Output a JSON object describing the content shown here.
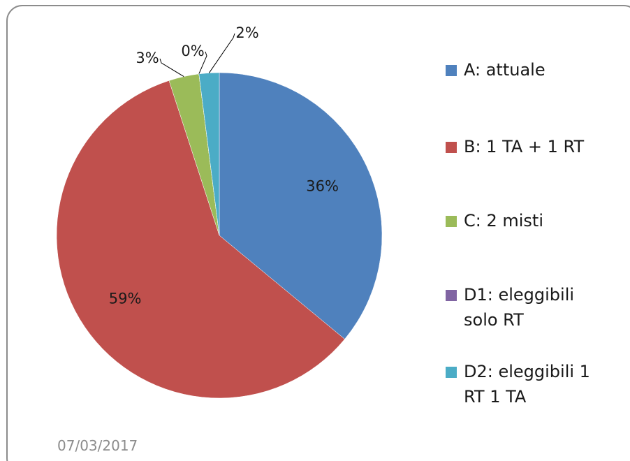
{
  "chart_data": {
    "type": "pie",
    "categories": [
      "A: attuale",
      "B: 1 TA + 1 RT",
      "C: 2 misti",
      "D1: eleggibili solo RT",
      "D2: eleggibili 1 RT 1 TA"
    ],
    "values": [
      36,
      59,
      3,
      0,
      2
    ],
    "value_labels": [
      "36%",
      "59%",
      "3%",
      "0%",
      "2%"
    ],
    "colors": [
      "#4f81bd",
      "#c0504d",
      "#9bbb59",
      "#8064a2",
      "#4bacc6"
    ],
    "legend": "right",
    "date": "07/03/2017"
  }
}
